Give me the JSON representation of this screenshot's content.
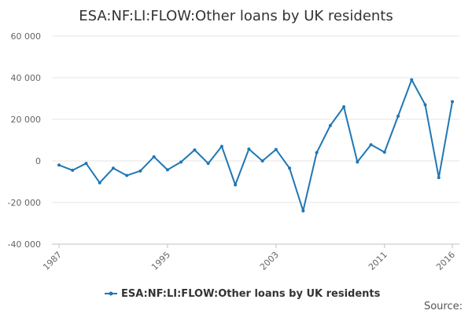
{
  "chart_data": {
    "type": "line",
    "title": "ESA:NF:LI:FLOW:Other loans by UK residents",
    "xlabel": "",
    "ylabel": "",
    "x": [
      1987,
      1988,
      1989,
      1990,
      1991,
      1992,
      1993,
      1994,
      1995,
      1996,
      1997,
      1998,
      1999,
      2000,
      2001,
      2002,
      2003,
      2004,
      2005,
      2006,
      2007,
      2008,
      2009,
      2010,
      2011,
      2012,
      2013,
      2014,
      2015,
      2016
    ],
    "x_ticks": [
      1987,
      1995,
      2003,
      2011,
      2016
    ],
    "ylim": [
      -40000,
      60000
    ],
    "y_ticks": [
      -40000,
      -20000,
      0,
      20000,
      40000,
      60000
    ],
    "y_tick_labels": [
      "-40 000",
      "-20 000",
      "0",
      "20 000",
      "40 000",
      "60 000"
    ],
    "grid": true,
    "legend_position": "bottom",
    "series": [
      {
        "name": "ESA:NF:LI:FLOW:Other loans by UK residents",
        "color": "#1f77b4",
        "values": [
          -2000,
          -4500,
          -1200,
          -10500,
          -3500,
          -7000,
          -4800,
          2000,
          -4300,
          -500,
          5300,
          -1200,
          7000,
          -11500,
          5700,
          0,
          5500,
          -3500,
          -24000,
          4000,
          17000,
          26000,
          -500,
          7800,
          4200,
          21500,
          39000,
          27000,
          -8000,
          28500
        ]
      }
    ],
    "source_label": "Source:"
  }
}
